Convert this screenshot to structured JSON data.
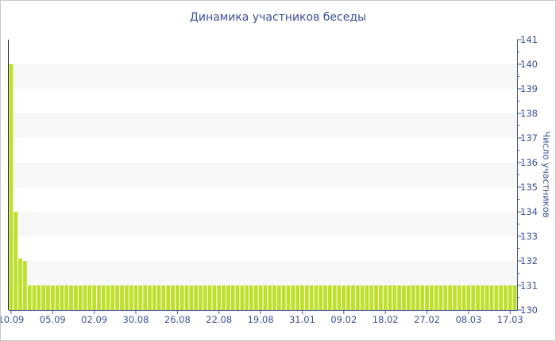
{
  "chart_data": {
    "type": "bar",
    "title": "Динамика участников беседы",
    "ylabel": "Число участников",
    "xlabel": "",
    "ylim": [
      130,
      141
    ],
    "yticks": [
      130,
      131,
      132,
      133,
      134,
      135,
      136,
      137,
      138,
      139,
      140,
      141
    ],
    "y_axis_position": "right",
    "grid": "alternating horizontal bands",
    "bar_color": "#bde02c",
    "text_color": "#3b4f9c",
    "xtick_labels": [
      "10.09",
      "05.09",
      "02.09",
      "30.08",
      "26.08",
      "22.08",
      "19.08",
      "31.01",
      "09.02",
      "18.02",
      "27.02",
      "08.03",
      "17.03"
    ],
    "xtick_every": 9,
    "values": [
      140,
      134,
      132.1,
      132,
      131,
      131,
      131,
      131,
      131,
      131,
      131,
      131,
      131,
      131,
      131,
      131,
      131,
      131,
      131,
      131,
      131,
      131,
      131,
      131,
      131,
      131,
      131,
      131,
      131,
      131,
      131,
      131,
      131,
      131,
      131,
      131,
      131,
      131,
      131,
      131,
      131,
      131,
      131,
      131,
      131,
      131,
      131,
      131,
      131,
      131,
      131,
      131,
      131,
      131,
      131,
      131,
      131,
      131,
      131,
      131,
      131,
      131,
      131,
      131,
      131,
      131,
      131,
      131,
      131,
      131,
      131,
      131,
      131,
      131,
      131,
      131,
      131,
      131,
      131,
      131,
      131,
      131,
      131,
      131,
      131,
      131,
      131,
      131,
      131,
      131,
      131,
      131,
      131,
      131,
      131,
      131,
      131,
      131,
      131,
      131,
      131,
      131,
      131,
      131,
      131,
      131,
      131,
      131,
      131,
      131
    ]
  }
}
